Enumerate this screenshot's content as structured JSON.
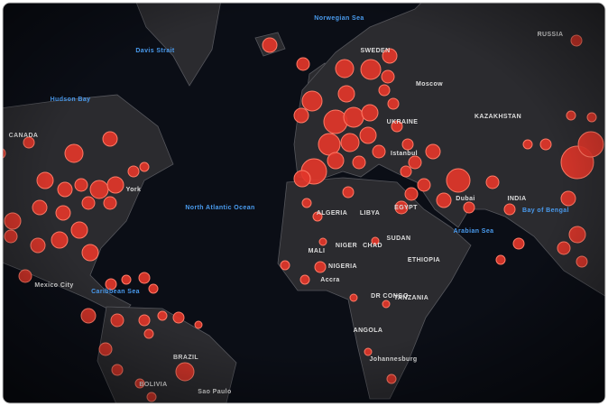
{
  "map": {
    "labels": [
      {
        "text": "Norwegian Sea"
      },
      {
        "text": "SWEDEN"
      },
      {
        "text": "RUSSIA"
      },
      {
        "text": "Davis Strait"
      },
      {
        "text": "Hudson Bay"
      },
      {
        "text": "CANADA"
      },
      {
        "text": "Moscow"
      },
      {
        "text": "UKRAINE"
      },
      {
        "text": "KAZAKHSTAN"
      },
      {
        "text": "Istanbul"
      },
      {
        "text": "York"
      },
      {
        "text": "North Atlantic Ocean"
      },
      {
        "text": "ALGERIA"
      },
      {
        "text": "LIBYA"
      },
      {
        "text": "EGYPT"
      },
      {
        "text": "Dubai"
      },
      {
        "text": "INDIA"
      },
      {
        "text": "MALI"
      },
      {
        "text": "NIGER"
      },
      {
        "text": "CHAD"
      },
      {
        "text": "SUDAN"
      },
      {
        "text": "Arabian Sea"
      },
      {
        "text": "Bay of Bengal"
      },
      {
        "text": "NIGERIA"
      },
      {
        "text": "ETHIOPIA"
      },
      {
        "text": "Accra"
      },
      {
        "text": "Mexico City"
      },
      {
        "text": "Caribbean Sea"
      },
      {
        "text": "DR CONGO"
      },
      {
        "text": "TANZANIA"
      },
      {
        "text": "ANGOLA"
      },
      {
        "text": "Johannesburg"
      },
      {
        "text": "BRAZIL"
      },
      {
        "text": "BOLIVIA"
      },
      {
        "text": "Sao Paulo"
      }
    ]
  }
}
